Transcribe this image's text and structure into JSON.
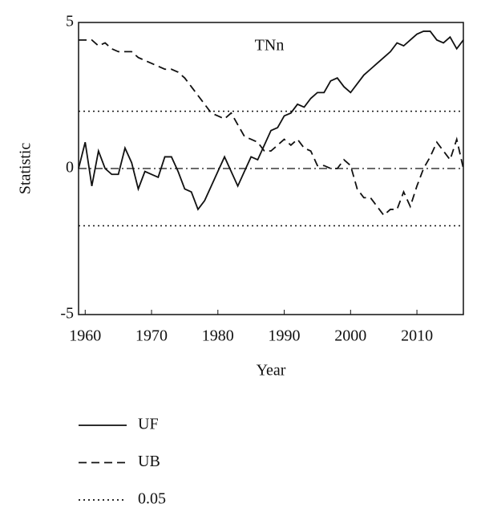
{
  "chart_data": {
    "type": "line",
    "annotation": "TNn",
    "xlabel": "Year",
    "ylabel": "Statistic",
    "x": [
      1959,
      1960,
      1961,
      1962,
      1963,
      1964,
      1965,
      1966,
      1967,
      1968,
      1969,
      1970,
      1971,
      1972,
      1973,
      1974,
      1975,
      1976,
      1977,
      1978,
      1979,
      1980,
      1981,
      1982,
      1983,
      1984,
      1985,
      1986,
      1987,
      1988,
      1989,
      1990,
      1991,
      1992,
      1993,
      1994,
      1995,
      1996,
      1997,
      1998,
      1999,
      2000,
      2001,
      2002,
      2003,
      2004,
      2005,
      2006,
      2007,
      2008,
      2009,
      2010,
      2011,
      2012,
      2013,
      2014,
      2015,
      2016,
      2017
    ],
    "series": [
      {
        "name": "UF",
        "color": "#111111",
        "dash": "none",
        "values": [
          0,
          0.9,
          -0.6,
          0.6,
          0,
          -0.2,
          -0.2,
          0.7,
          0.2,
          -0.7,
          -0.1,
          -0.2,
          -0.3,
          0.4,
          0.4,
          -0.1,
          -0.7,
          -0.8,
          -1.4,
          -1.1,
          -0.6,
          -0.1,
          0.4,
          -0.1,
          -0.6,
          -0.1,
          0.4,
          0.3,
          0.8,
          1.3,
          1.4,
          1.8,
          1.9,
          2.2,
          2.1,
          2.4,
          2.6,
          2.6,
          3.0,
          3.1,
          2.8,
          2.6,
          2.9,
          3.2,
          3.4,
          3.6,
          3.8,
          4.0,
          4.3,
          4.2,
          4.4,
          4.6,
          4.7,
          4.7,
          4.4,
          4.3,
          4.5,
          4.1,
          4.4
        ]
      },
      {
        "name": "UB",
        "color": "#111111",
        "dash": "10 6",
        "values": [
          4.4,
          4.4,
          4.4,
          4.2,
          4.3,
          4.1,
          4.0,
          4.0,
          4.0,
          3.8,
          3.7,
          3.6,
          3.5,
          3.4,
          3.4,
          3.3,
          3.1,
          2.8,
          2.5,
          2.2,
          1.9,
          1.8,
          1.7,
          1.9,
          1.5,
          1.1,
          1.0,
          0.9,
          0.6,
          0.6,
          0.8,
          1.0,
          0.8,
          1.0,
          0.7,
          0.6,
          0.1,
          0.1,
          0,
          0,
          0.3,
          0.1,
          -0.7,
          -1.0,
          -1.0,
          -1.3,
          -1.6,
          -1.4,
          -1.4,
          -0.8,
          -1.3,
          -0.6,
          0,
          0.4,
          0.9,
          0.6,
          0.3,
          1.0,
          0
        ]
      },
      {
        "name": "0.05",
        "color": "#111111",
        "dash": "2 4",
        "levels": [
          1.96,
          -1.96
        ]
      }
    ],
    "reference_line": 0,
    "xlim": [
      1959,
      2017
    ],
    "ylim": [
      -5,
      5
    ],
    "xticks": [
      1960,
      1970,
      1980,
      1990,
      2000,
      2010
    ],
    "yticks": [
      -5,
      0,
      5
    ]
  }
}
